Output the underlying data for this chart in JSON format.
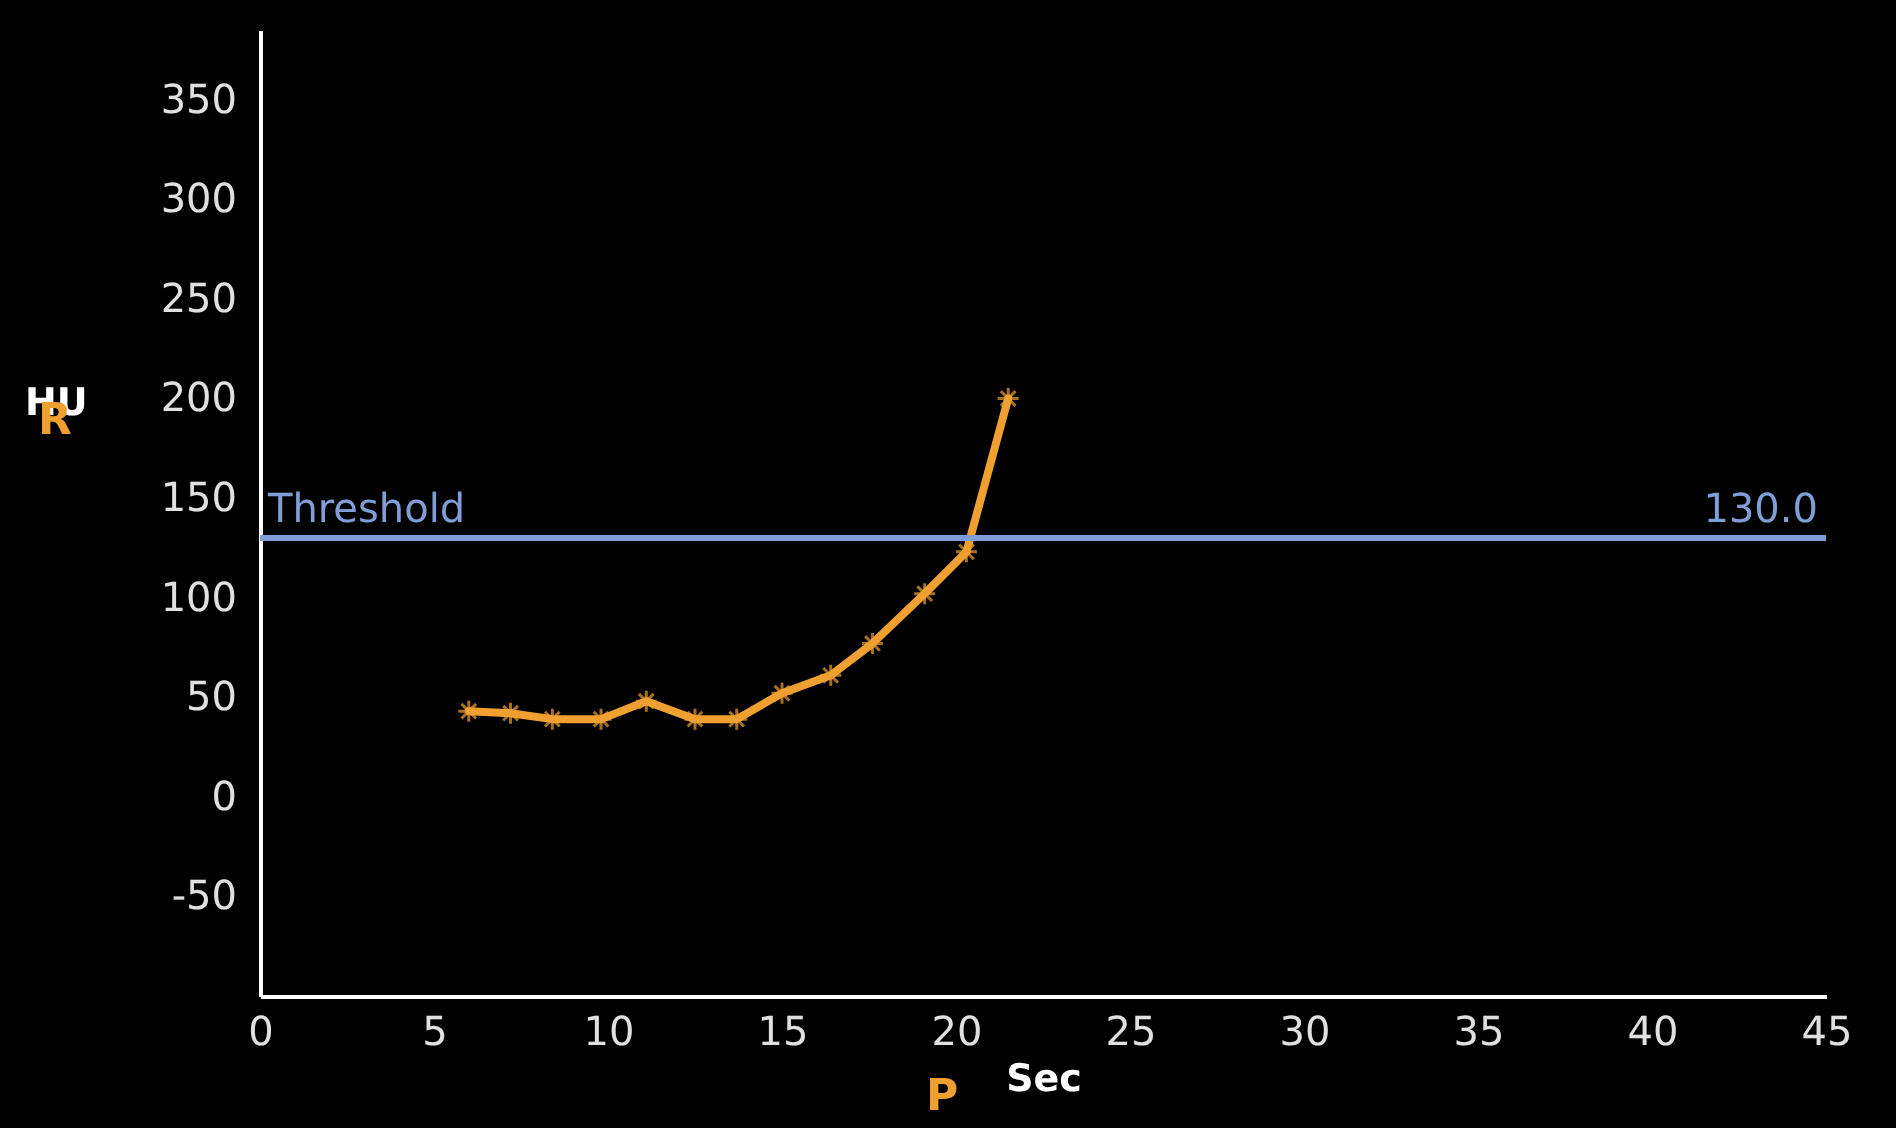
{
  "chart_data": {
    "type": "line",
    "xlabel": "Sec",
    "ylabel": "HU",
    "x": [
      6,
      7.2,
      8.4,
      9.8,
      11.1,
      12.5,
      13.7,
      15,
      16.4,
      17.6,
      19.1,
      20.3,
      21.5
    ],
    "series": [
      {
        "color": "#f0a030",
        "values": [
          43,
          42,
          39,
          39,
          48,
          39,
          39,
          52,
          61,
          77,
          102,
          123,
          200
        ]
      }
    ],
    "xlim": [
      0,
      45
    ],
    "xticks": [
      0,
      5,
      10,
      15,
      20,
      25,
      30,
      35,
      40,
      45
    ],
    "ylim": [
      -100,
      385
    ],
    "yticks": [
      -50,
      0,
      50,
      100,
      150,
      200,
      250,
      300,
      350
    ],
    "grid": false,
    "marker": "cross",
    "line_style": "solid",
    "ref_lines": [
      {
        "axis": "y",
        "value": 130,
        "label": "Threshold",
        "color": "#7f9ed6"
      }
    ],
    "annotations": [
      {
        "text": "130.0",
        "x": 45,
        "y": 130
      },
      "R",
      "P"
    ]
  }
}
